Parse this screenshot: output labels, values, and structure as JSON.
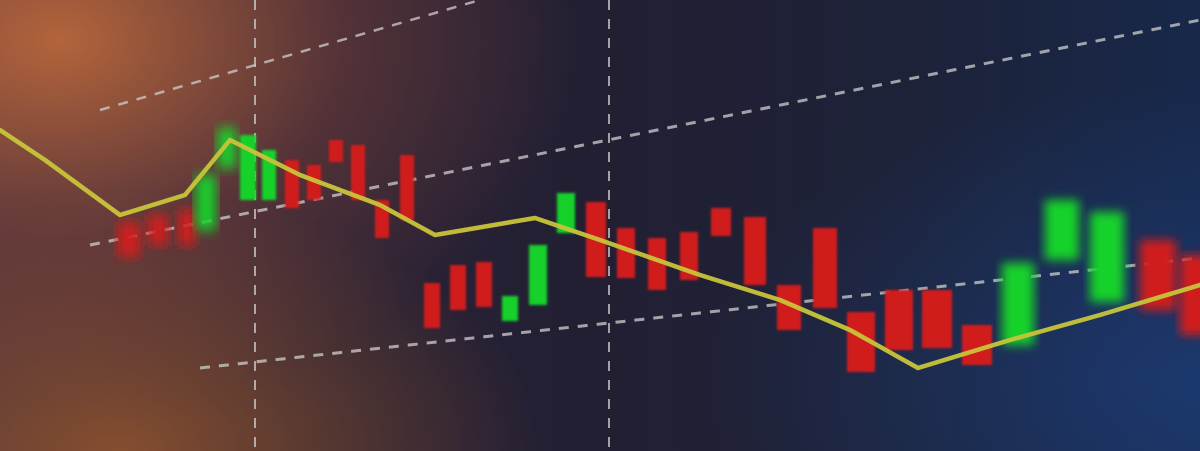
{
  "scene": {
    "description_colors": {
      "background_dark": "#1a1b2e",
      "warm_glow": "#dc783c",
      "cool_glow": "#1e468c",
      "bar_up": "#19d12a",
      "bar_down": "#d11a1a",
      "trend_line": "#c8c43a",
      "grid_line": "#bfbfbf"
    }
  },
  "chart_data": {
    "type": "bar",
    "style": "candlestick-like floating bars with a trend line overlay",
    "bars": [
      {
        "dir": "down"
      },
      {
        "dir": "down"
      },
      {
        "dir": "down"
      },
      {
        "dir": "up"
      },
      {
        "dir": "up"
      },
      {
        "dir": "up"
      },
      {
        "dir": "up"
      },
      {
        "dir": "down"
      },
      {
        "dir": "down"
      },
      {
        "dir": "down"
      },
      {
        "dir": "down"
      },
      {
        "dir": "down"
      },
      {
        "dir": "down"
      },
      {
        "dir": "down"
      },
      {
        "dir": "down"
      },
      {
        "dir": "down"
      },
      {
        "dir": "up"
      },
      {
        "dir": "up"
      },
      {
        "dir": "up"
      },
      {
        "dir": "down"
      },
      {
        "dir": "down"
      },
      {
        "dir": "down"
      },
      {
        "dir": "down"
      },
      {
        "dir": "down"
      },
      {
        "dir": "down"
      },
      {
        "dir": "down"
      },
      {
        "dir": "down"
      },
      {
        "dir": "down"
      },
      {
        "dir": "down"
      },
      {
        "dir": "down"
      },
      {
        "dir": "down"
      },
      {
        "dir": "up"
      },
      {
        "dir": "up"
      },
      {
        "dir": "up"
      },
      {
        "dir": "down"
      },
      {
        "dir": "down"
      }
    ],
    "grid": true,
    "legend": "none"
  }
}
